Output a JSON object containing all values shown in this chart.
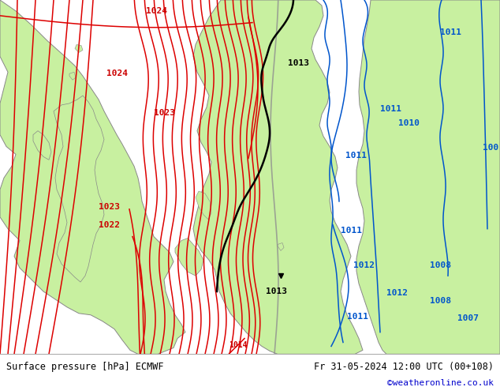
{
  "title_left": "Surface pressure [hPa] ECMWF",
  "title_right": "Fr 31-05-2024 12:00 UTC (00+108)",
  "credit": "©weatheronline.co.uk",
  "bg_map_color": "#e8e8e8",
  "land_color": "#c8f0a0",
  "land_edge_color": "#888888",
  "isobar_red": "#dd0000",
  "isobar_blue": "#0055cc",
  "isobar_black": "#000000",
  "label_red": "#cc0000",
  "label_blue": "#0055cc",
  "label_black": "#000000",
  "footer_bg": "#ffffff",
  "footer_line": "#aaaaaa",
  "credit_color": "#0000cc",
  "footer_fontsize": 8.5,
  "credit_fontsize": 8,
  "label_fontsize": 8,
  "fig_width": 6.34,
  "fig_height": 4.9,
  "dpi": 100
}
